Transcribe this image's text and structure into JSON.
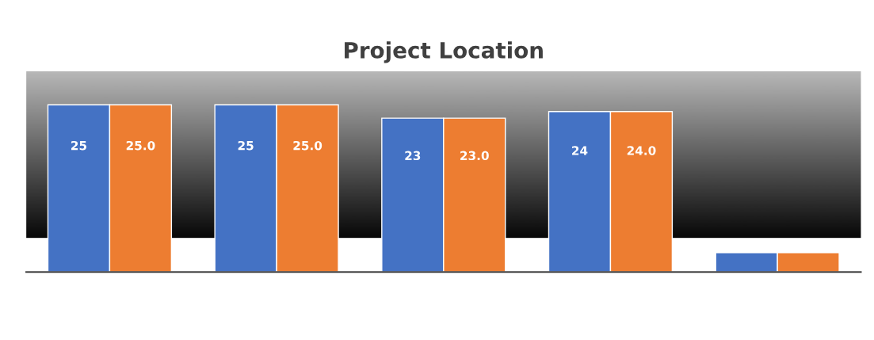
{
  "chart_data": {
    "type": "bar",
    "title": "Project Location",
    "categories": [
      null,
      null,
      null,
      null,
      null
    ],
    "series": [
      {
        "color": "#4472c4",
        "values": [
          25,
          25,
          23,
          24,
          2.9
        ],
        "value_labels": [
          "25",
          "25",
          "23",
          "24",
          null
        ]
      },
      {
        "color": "#ed7d31",
        "values": [
          25,
          25,
          23,
          24,
          2.9
        ],
        "value_labels": [
          "25.0",
          "25.0",
          "23.0",
          "24.0",
          null
        ]
      }
    ],
    "ylim": [
      0,
      30
    ],
    "tick_labels": false,
    "grid": false,
    "legend": false
  }
}
